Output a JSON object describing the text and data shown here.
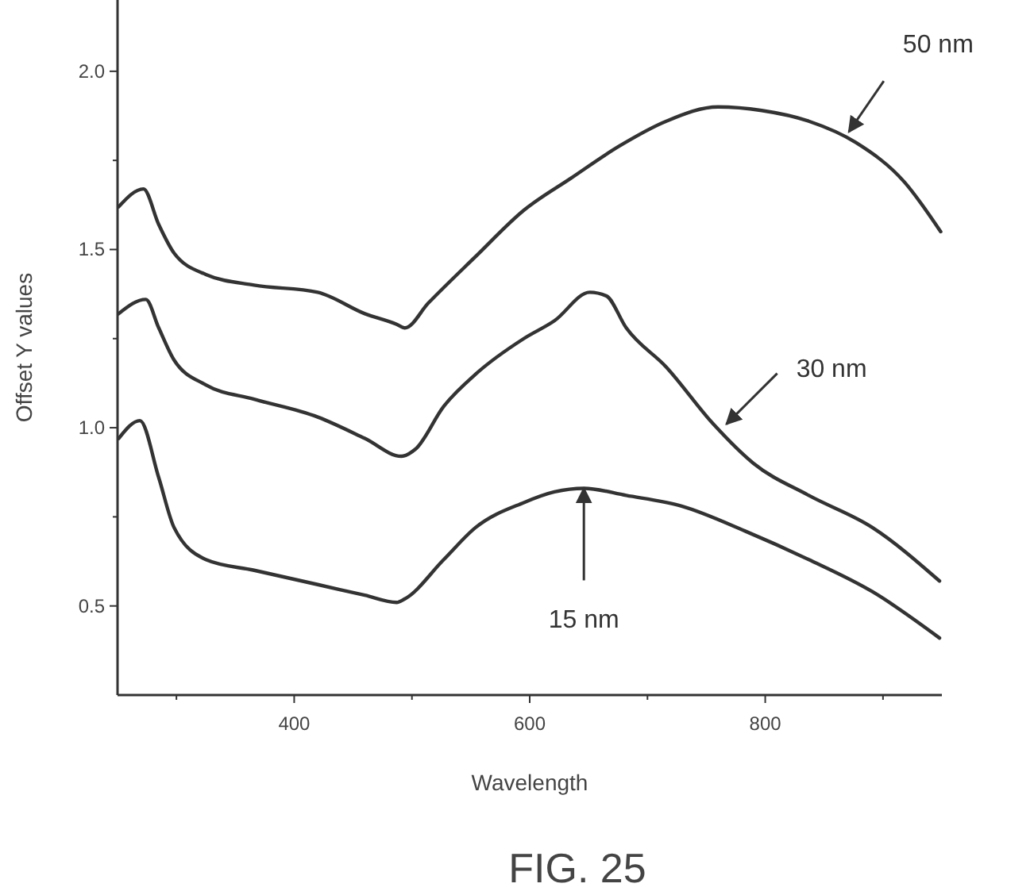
{
  "chart_data": {
    "type": "line",
    "xlabel": "Wavelength",
    "ylabel": "Offset Y values",
    "xlim": [
      250,
      950
    ],
    "ylim": [
      0.25,
      2.2
    ],
    "xticks": [
      {
        "value": 300,
        "label": null
      },
      400,
      {
        "value": 500,
        "label": null
      },
      600,
      {
        "value": 700,
        "label": null
      },
      800,
      {
        "value": 900,
        "label": null
      }
    ],
    "yticks": [
      0.5,
      {
        "value": 0.75,
        "label": null
      },
      {
        "value": 1,
        "label": "1.0"
      },
      {
        "value": 1.25,
        "label": null
      },
      1.5,
      {
        "value": 1.75,
        "label": null
      },
      {
        "value": 2,
        "label": "2.0"
      }
    ],
    "series": [
      {
        "color": "#333333",
        "x": [
          251,
          269,
          285,
          298,
          325,
          366,
          420,
          460,
          487,
          494,
          527,
          554,
          595,
          621,
          646,
          682,
          729,
          783,
          837,
          891,
          948
        ],
        "values": [
          0.97,
          1.02,
          0.86,
          0.72,
          0.63,
          0.6,
          0.56,
          0.53,
          0.51,
          0.52,
          0.63,
          0.72,
          0.79,
          0.82,
          0.83,
          0.81,
          0.78,
          0.71,
          0.63,
          0.54,
          0.41
        ]
      },
      {
        "color": "#333333",
        "x": [
          251,
          274,
          285,
          298,
          325,
          366,
          420,
          460,
          491,
          503,
          527,
          554,
          595,
          621,
          651,
          665,
          682,
          716,
          756,
          790,
          837,
          891,
          948
        ],
        "values": [
          1.32,
          1.36,
          1.28,
          1.19,
          1.12,
          1.08,
          1.03,
          0.97,
          0.92,
          0.94,
          1.06,
          1.15,
          1.25,
          1.3,
          1.38,
          1.37,
          1.28,
          1.17,
          1.01,
          0.9,
          0.81,
          0.72,
          0.57
        ]
      },
      {
        "color": "#333333",
        "x": [
          251,
          272,
          285,
          298,
          325,
          366,
          420,
          460,
          487,
          494,
          514,
          554,
          595,
          635,
          676,
          716,
          760,
          797,
          837,
          877,
          918,
          949
        ],
        "values": [
          1.62,
          1.67,
          1.57,
          1.49,
          1.43,
          1.4,
          1.38,
          1.32,
          1.29,
          1.28,
          1.35,
          1.48,
          1.61,
          1.7,
          1.79,
          1.86,
          1.9,
          1.89,
          1.86,
          1.8,
          1.69,
          1.55
        ]
      }
    ],
    "annotations": [
      {
        "text": "50 nm",
        "x": 871,
        "y": 1.83
      },
      {
        "text": "30 nm",
        "x": 767,
        "y": 1.01
      },
      {
        "text": "15 nm",
        "x": 646,
        "y": 0.83
      },
      "FIG. 25"
    ]
  }
}
